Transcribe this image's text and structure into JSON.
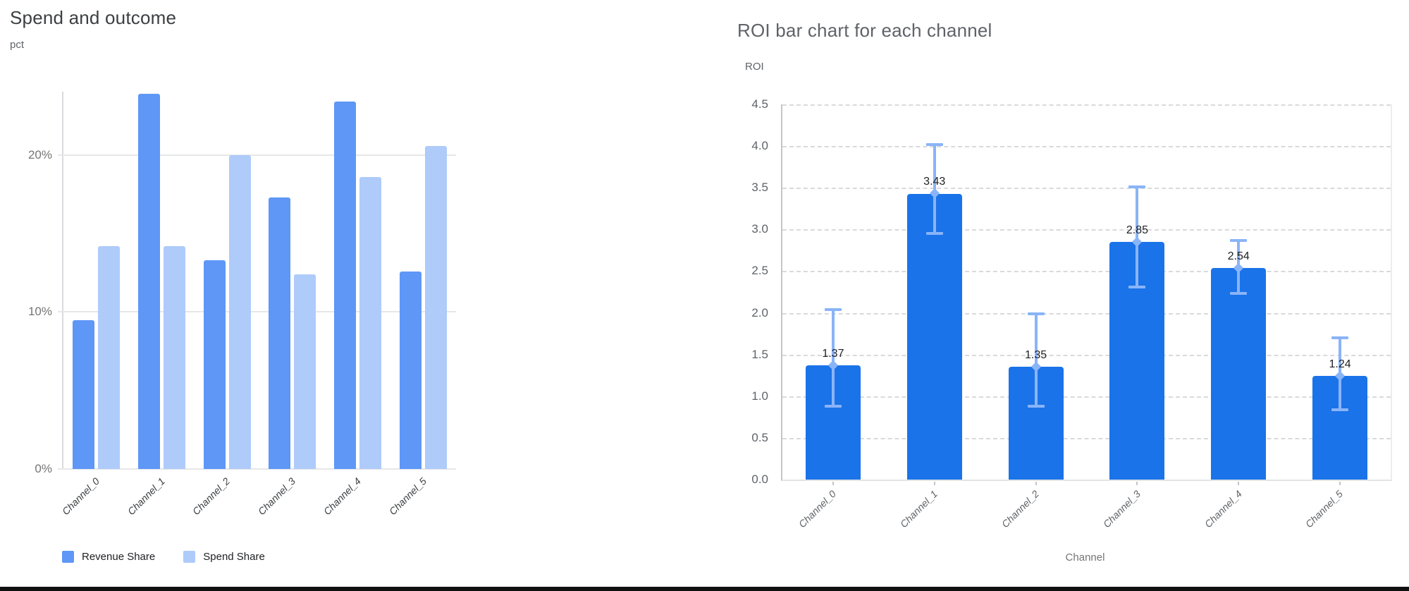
{
  "page": {
    "background": "#ffffff",
    "bottom_border_color": "#101010"
  },
  "chart_data": [
    {
      "type": "bar",
      "title": "Spend and outcome",
      "ylabel": "pct",
      "xlabel": "",
      "categories": [
        "Channel_0",
        "Channel_1",
        "Channel_2",
        "Channel_3",
        "Channel_4",
        "Channel_5"
      ],
      "series": [
        {
          "name": "Revenue Share",
          "color": "#5E97F6",
          "values": [
            9.5,
            23.9,
            13.3,
            17.3,
            23.4,
            12.6
          ]
        },
        {
          "name": "Spend Share",
          "color": "#AECBFA",
          "values": [
            14.2,
            14.2,
            20.0,
            12.4,
            18.6,
            20.6
          ]
        }
      ],
      "y_ticks": [
        {
          "value": 0,
          "label": "0%"
        },
        {
          "value": 10,
          "label": "10%"
        },
        {
          "value": 20,
          "label": "20%"
        }
      ],
      "ylim": [
        0,
        24.04
      ],
      "grid": "solid",
      "legend_position": "bottom-left"
    },
    {
      "type": "bar",
      "title": "ROI bar chart for each channel",
      "ylabel": "ROI",
      "xlabel": "Channel",
      "categories": [
        "Channel_0",
        "Channel_1",
        "Channel_2",
        "Channel_3",
        "Channel_4",
        "Channel_5"
      ],
      "series": [
        {
          "name": "ROI",
          "color": "#1A73E8",
          "values": [
            1.37,
            3.43,
            1.35,
            2.85,
            2.54,
            1.24
          ],
          "error_low": [
            0.88,
            2.95,
            0.88,
            2.31,
            2.23,
            0.84
          ],
          "error_high": [
            2.04,
            4.02,
            1.99,
            3.51,
            2.87,
            1.7
          ],
          "error_color": "#8AB4F8"
        }
      ],
      "data_labels": [
        "1.37",
        "3.43",
        "1.35",
        "2.85",
        "2.54",
        "1.24"
      ],
      "y_ticks": [
        {
          "value": 0.0,
          "label": "0.0"
        },
        {
          "value": 0.5,
          "label": "0.5"
        },
        {
          "value": 1.0,
          "label": "1.0"
        },
        {
          "value": 1.5,
          "label": "1.5"
        },
        {
          "value": 2.0,
          "label": "2.0"
        },
        {
          "value": 2.5,
          "label": "2.5"
        },
        {
          "value": 3.0,
          "label": "3.0"
        },
        {
          "value": 3.5,
          "label": "3.5"
        },
        {
          "value": 4.0,
          "label": "4.0"
        },
        {
          "value": 4.5,
          "label": "4.5"
        }
      ],
      "ylim": [
        0,
        4.5
      ],
      "grid": "dashed",
      "legend_position": "none"
    }
  ]
}
